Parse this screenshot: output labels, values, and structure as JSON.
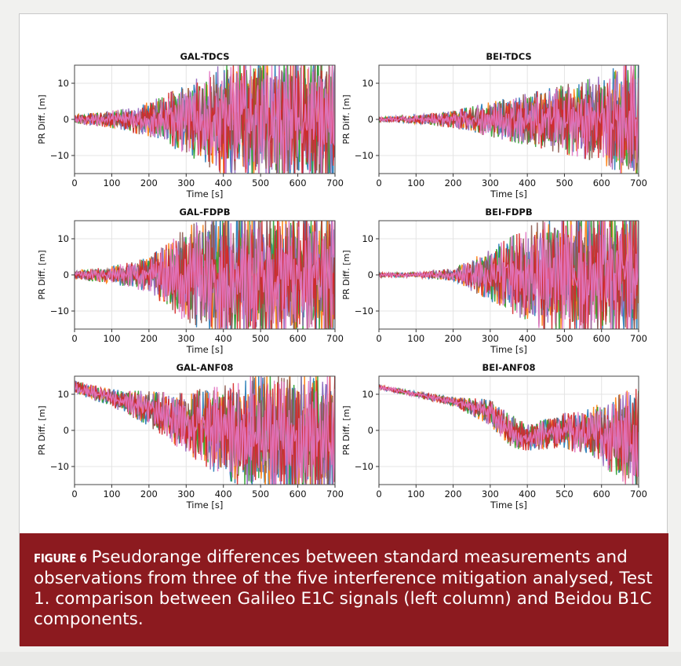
{
  "figure": {
    "caption_label": "FIGURE 6",
    "caption_text": "Pseudorange differences between standard measurements and observations from three of the five interference mitigation analysed, Test 1. comparison between Galileo E1C signals (left column) and Beidou B1C components."
  },
  "colors": {
    "caption_bg": "#8c1a1f",
    "series": [
      "#1f77b4",
      "#ff7f0e",
      "#2ca02c",
      "#d62728",
      "#9467bd",
      "#8c564b",
      "#e377c2"
    ]
  },
  "chart_data": [
    {
      "type": "line",
      "title": "GAL-TDCS",
      "xlabel": "Time [s]",
      "ylabel": "PR Diff. [m]",
      "xlim": [
        0,
        700
      ],
      "ylim": [
        -15,
        15
      ],
      "xticks": [
        "0",
        "100",
        "200",
        "300",
        "400",
        "500",
        "600",
        "700"
      ],
      "yticks": [
        "10",
        "0",
        "−10"
      ],
      "grid": true,
      "x": [
        0,
        100,
        200,
        300,
        400,
        500,
        600,
        650,
        700
      ],
      "series": [
        {
          "center": [
            0,
            0,
            0,
            0,
            0,
            0,
            0,
            0,
            0
          ],
          "amplitude": [
            1,
            2,
            4,
            8,
            13,
            15,
            15,
            15,
            15
          ]
        }
      ]
    },
    {
      "type": "line",
      "title": "BEI-TDCS",
      "xlabel": "Time [s]",
      "ylabel": "PR Diff. [m]",
      "xlim": [
        0,
        700
      ],
      "ylim": [
        -15,
        15
      ],
      "xticks": [
        "0",
        "100",
        "200",
        "300",
        "400",
        "500",
        "600",
        "700"
      ],
      "yticks": [
        "10",
        "0",
        "−10"
      ],
      "grid": true,
      "x": [
        0,
        100,
        200,
        300,
        400,
        500,
        600,
        650,
        700
      ],
      "series": [
        {
          "center": [
            0,
            0,
            0,
            0,
            0,
            0,
            0,
            0,
            0
          ],
          "amplitude": [
            0.5,
            1,
            2,
            4,
            6,
            8,
            10,
            13,
            15
          ]
        }
      ]
    },
    {
      "type": "line",
      "title": "GAL-FDPB",
      "xlabel": "Time [s]",
      "ylabel": "PR Diff. [m]",
      "xlim": [
        0,
        700
      ],
      "ylim": [
        -15,
        15
      ],
      "xticks": [
        "0",
        "100",
        "200",
        "300",
        "400",
        "500",
        "600",
        "700"
      ],
      "yticks": [
        "10",
        "0",
        "−10"
      ],
      "grid": true,
      "x": [
        0,
        100,
        200,
        300,
        400,
        500,
        600,
        650,
        700
      ],
      "series": [
        {
          "center": [
            0,
            0,
            0,
            0,
            0,
            0,
            0,
            0,
            0
          ],
          "amplitude": [
            1,
            2,
            4,
            11,
            15,
            15,
            15,
            15,
            15
          ]
        }
      ]
    },
    {
      "type": "line",
      "title": "BEI-FDPB",
      "xlabel": "Time [s]",
      "ylabel": "PR Diff. [m]",
      "xlim": [
        0,
        700
      ],
      "ylim": [
        -15,
        15
      ],
      "xticks": [
        "0",
        "100",
        "200",
        "300",
        "400",
        "500",
        "600",
        "700"
      ],
      "yticks": [
        "10",
        "0",
        "−10"
      ],
      "grid": true,
      "x": [
        0,
        100,
        200,
        300,
        400,
        500,
        600,
        650,
        700
      ],
      "series": [
        {
          "center": [
            0,
            0,
            0,
            0,
            0,
            0,
            0,
            0,
            0
          ],
          "amplitude": [
            0.5,
            0.5,
            1.5,
            6,
            11,
            15,
            15,
            15,
            15
          ]
        }
      ]
    },
    {
      "type": "line",
      "title": "GAL-ANF08",
      "xlabel": "Time [s]",
      "ylabel": "PR Diff. [m]",
      "xlim": [
        0,
        700
      ],
      "ylim": [
        -15,
        15
      ],
      "xticks": [
        "0",
        "100",
        "200",
        "300",
        "400",
        "500",
        "600",
        "700"
      ],
      "yticks": [
        "10",
        "0",
        "−10"
      ],
      "grid": true,
      "x": [
        0,
        100,
        200,
        300,
        400,
        500,
        600,
        650,
        700
      ],
      "series": [
        {
          "center": [
            12,
            9,
            6,
            2,
            0,
            -1,
            -2,
            -2,
            -2
          ],
          "amplitude": [
            1.5,
            2,
            4,
            7,
            11,
            14,
            15,
            15,
            15
          ]
        }
      ]
    },
    {
      "type": "line",
      "title": "BEI-ANF08",
      "xlabel": "Time [s]",
      "ylabel": "PR Diff. [m]",
      "xlim": [
        0,
        700
      ],
      "ylim": [
        -15,
        15
      ],
      "xticks": [
        "0",
        "100",
        "200",
        "300",
        "400",
        "500",
        "5C0",
        "600",
        "700"
      ],
      "yticks": [
        "10",
        "0",
        "−10"
      ],
      "grid": true,
      "x": [
        0,
        100,
        200,
        300,
        350,
        400,
        500,
        600,
        650,
        700
      ],
      "series": [
        {
          "center": [
            12,
            10,
            8,
            5,
            0,
            -2,
            0,
            -1,
            -2,
            -3
          ],
          "amplitude": [
            0.5,
            0.6,
            1,
            3,
            4,
            3,
            4,
            7,
            10,
            13
          ]
        }
      ]
    }
  ]
}
